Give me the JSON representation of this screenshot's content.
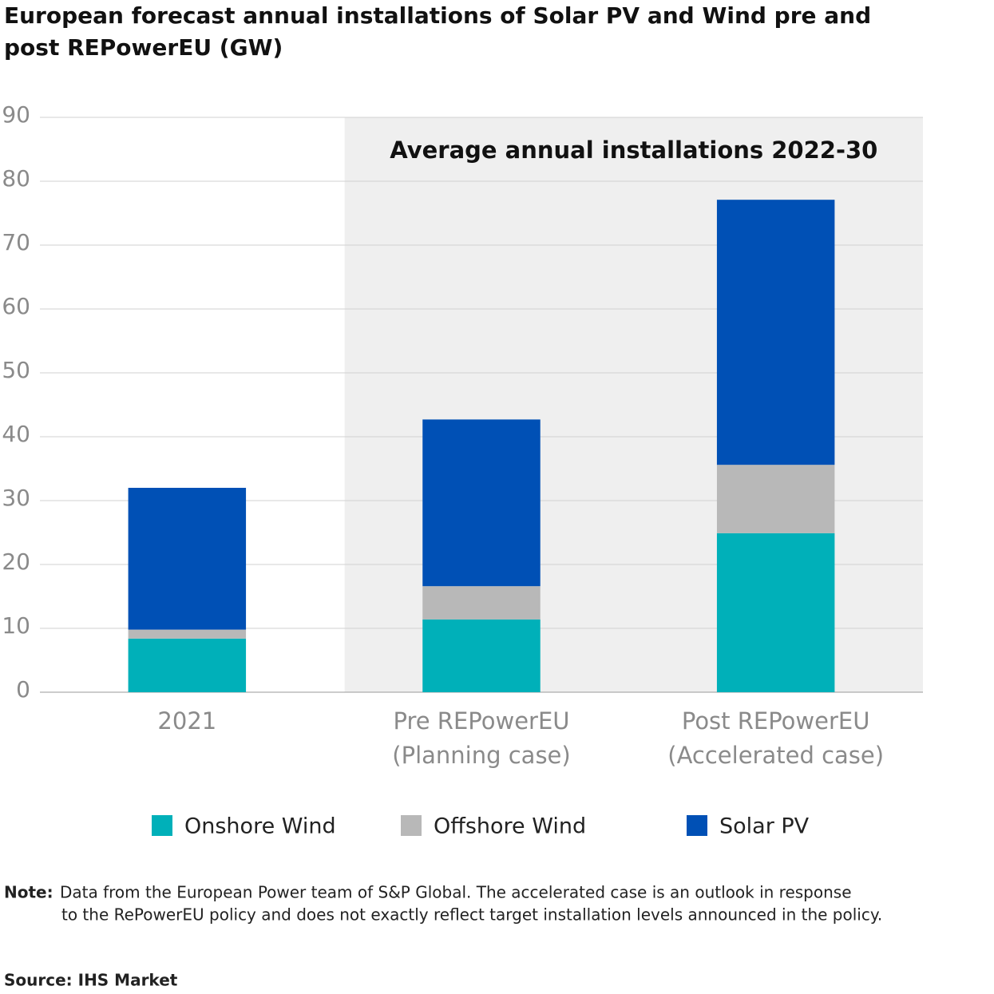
{
  "chart_data": {
    "type": "stacked-bar",
    "title": "European forecast annual installations of Solar PV and Wind pre and post REPowerEU (GW)",
    "annotation": "Average annual installations 2022-30",
    "categories": [
      [
        "2021"
      ],
      [
        "Pre REPowerEU",
        "(Planning case)"
      ],
      [
        "Post REPowerEU",
        "(Accelerated case)"
      ]
    ],
    "series": [
      {
        "name": "Onshore Wind",
        "color": "#00b0b9",
        "values": [
          8.4,
          11.4,
          24.9
        ]
      },
      {
        "name": "Offshore Wind",
        "color": "#b8b8b8",
        "values": [
          1.4,
          5.2,
          10.7
        ]
      },
      {
        "name": "Solar PV",
        "color": "#0050b5",
        "values": [
          22.2,
          26.1,
          41.5
        ]
      }
    ],
    "ylim": [
      0,
      90
    ],
    "yticks": [
      0,
      10,
      20,
      30,
      40,
      50,
      60,
      70,
      80,
      90
    ],
    "grid": true,
    "note": {
      "label": "Note:",
      "lines": [
        "Data from the European Power team of S&P Global. The accelerated case is an outlook in response",
        "to the RePowerEU policy and does not exactly reflect target installation levels announced in the policy."
      ]
    },
    "source": "Source: IHS Market"
  }
}
